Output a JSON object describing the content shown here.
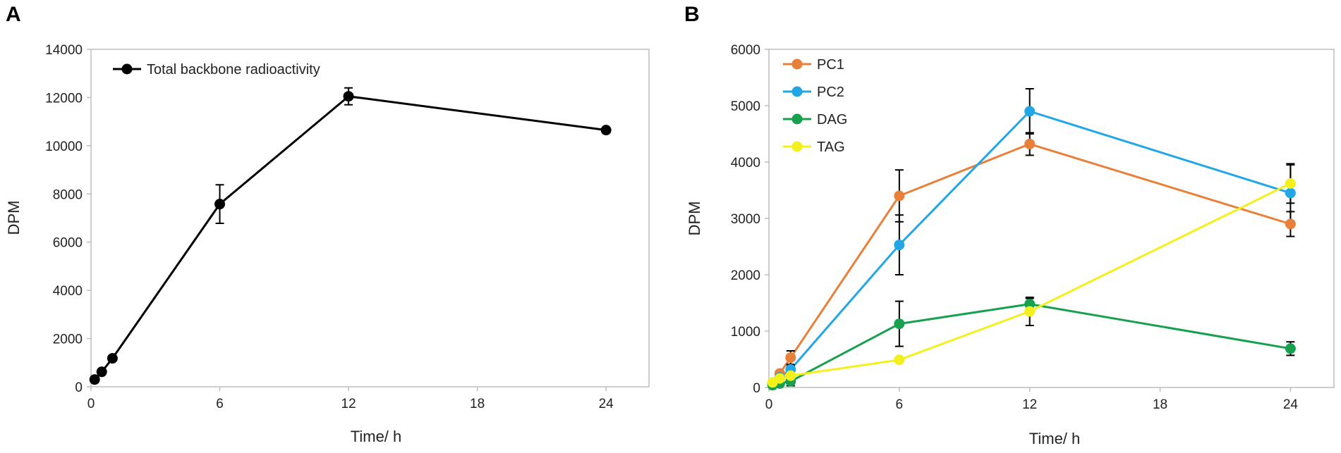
{
  "chart_data": [
    {
      "panel": "A",
      "type": "line",
      "xlabel": "Time/ h",
      "ylabel": "DPM",
      "xlim": [
        0,
        26
      ],
      "ylim": [
        0,
        14000
      ],
      "xticks": [
        0,
        6,
        12,
        18,
        24
      ],
      "yticks": [
        0,
        2000,
        4000,
        6000,
        8000,
        10000,
        12000,
        14000
      ],
      "legend_position": "top-left",
      "series": [
        {
          "name": "Total backbone radioactivity",
          "color": "#000000",
          "x": [
            0.17,
            0.5,
            1,
            6,
            12,
            24
          ],
          "y": [
            300,
            620,
            1180,
            7580,
            12050,
            10650
          ],
          "err": [
            0,
            0,
            0,
            800,
            350,
            0
          ]
        }
      ]
    },
    {
      "panel": "B",
      "type": "line",
      "xlabel": "Time/ h",
      "ylabel": "DPM",
      "xlim": [
        0,
        26
      ],
      "ylim": [
        0,
        6000
      ],
      "xticks": [
        0,
        6,
        12,
        18,
        24
      ],
      "yticks": [
        0,
        1000,
        2000,
        3000,
        4000,
        5000,
        6000
      ],
      "legend_position": "top-left",
      "series": [
        {
          "name": "PC1",
          "color": "#E8803A",
          "x": [
            0.17,
            0.5,
            1,
            6,
            12,
            24
          ],
          "y": [
            80,
            250,
            530,
            3400,
            4320,
            2900
          ],
          "err": [
            0,
            0,
            120,
            460,
            200,
            220
          ]
        },
        {
          "name": "PC2",
          "color": "#22A7E6",
          "x": [
            0.17,
            0.5,
            1,
            6,
            12,
            24
          ],
          "y": [
            60,
            180,
            320,
            2530,
            4900,
            3450
          ],
          "err": [
            0,
            0,
            80,
            530,
            400,
            500
          ]
        },
        {
          "name": "DAG",
          "color": "#17A04E",
          "x": [
            0.17,
            0.5,
            1,
            6,
            12,
            24
          ],
          "y": [
            40,
            70,
            110,
            1130,
            1480,
            690
          ],
          "err": [
            0,
            0,
            80,
            400,
            100,
            120
          ]
        },
        {
          "name": "TAG",
          "color": "#F4F01C",
          "x": [
            0.17,
            0.5,
            1,
            6,
            12,
            24
          ],
          "y": [
            90,
            160,
            210,
            490,
            1350,
            3620
          ],
          "err": [
            0,
            0,
            40,
            0,
            250,
            350
          ]
        }
      ]
    }
  ]
}
